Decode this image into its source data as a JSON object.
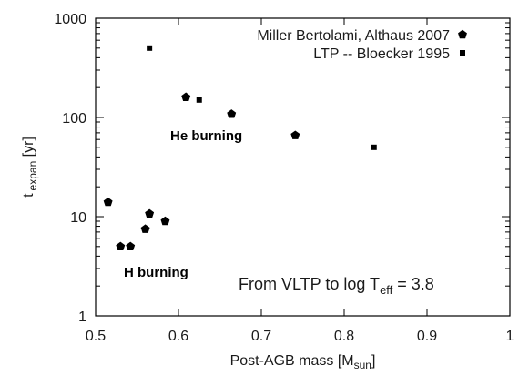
{
  "chart_data": {
    "type": "scatter",
    "xlabel": "Post-AGB mass [M",
    "xlabel_sub": "sun",
    "xlabel_end": "]",
    "ylabel": "t",
    "ylabel_sub": "expan",
    "ylabel_end": " [yr]",
    "xlim": [
      0.5,
      1.0
    ],
    "ylim": [
      1,
      1000
    ],
    "yscale": "log",
    "grid": false,
    "legend_position": "top-right",
    "x_ticks": [
      0.5,
      0.6,
      0.7,
      0.8,
      0.9,
      1.0
    ],
    "x_tick_labels": [
      "0.5",
      "0.6",
      "0.7",
      "0.8",
      "0.9",
      "1"
    ],
    "y_ticks": [
      1,
      10,
      100,
      1000
    ],
    "y_tick_labels": [
      "1",
      "10",
      "100",
      "1000"
    ],
    "series": [
      {
        "name": "Miller Bertolami, Althaus 2007",
        "marker": "pentagon",
        "color": "#000000",
        "points": [
          {
            "x": 0.515,
            "y": 14
          },
          {
            "x": 0.53,
            "y": 5
          },
          {
            "x": 0.542,
            "y": 5
          },
          {
            "x": 0.56,
            "y": 7.5
          },
          {
            "x": 0.565,
            "y": 10.7
          },
          {
            "x": 0.584,
            "y": 9
          },
          {
            "x": 0.609,
            "y": 160
          },
          {
            "x": 0.664,
            "y": 108
          },
          {
            "x": 0.741,
            "y": 66
          }
        ]
      },
      {
        "name": "LTP -- Bloecker 1995",
        "marker": "square",
        "color": "#000000",
        "points": [
          {
            "x": 0.565,
            "y": 500
          },
          {
            "x": 0.625,
            "y": 150
          },
          {
            "x": 0.836,
            "y": 50
          }
        ]
      }
    ],
    "annotations": {
      "he_burning": "He burning",
      "h_burning": "H burning",
      "condition_prefix": "From VLTP to log T",
      "condition_sub": "eff",
      "condition_suffix": " = 3.8"
    }
  }
}
